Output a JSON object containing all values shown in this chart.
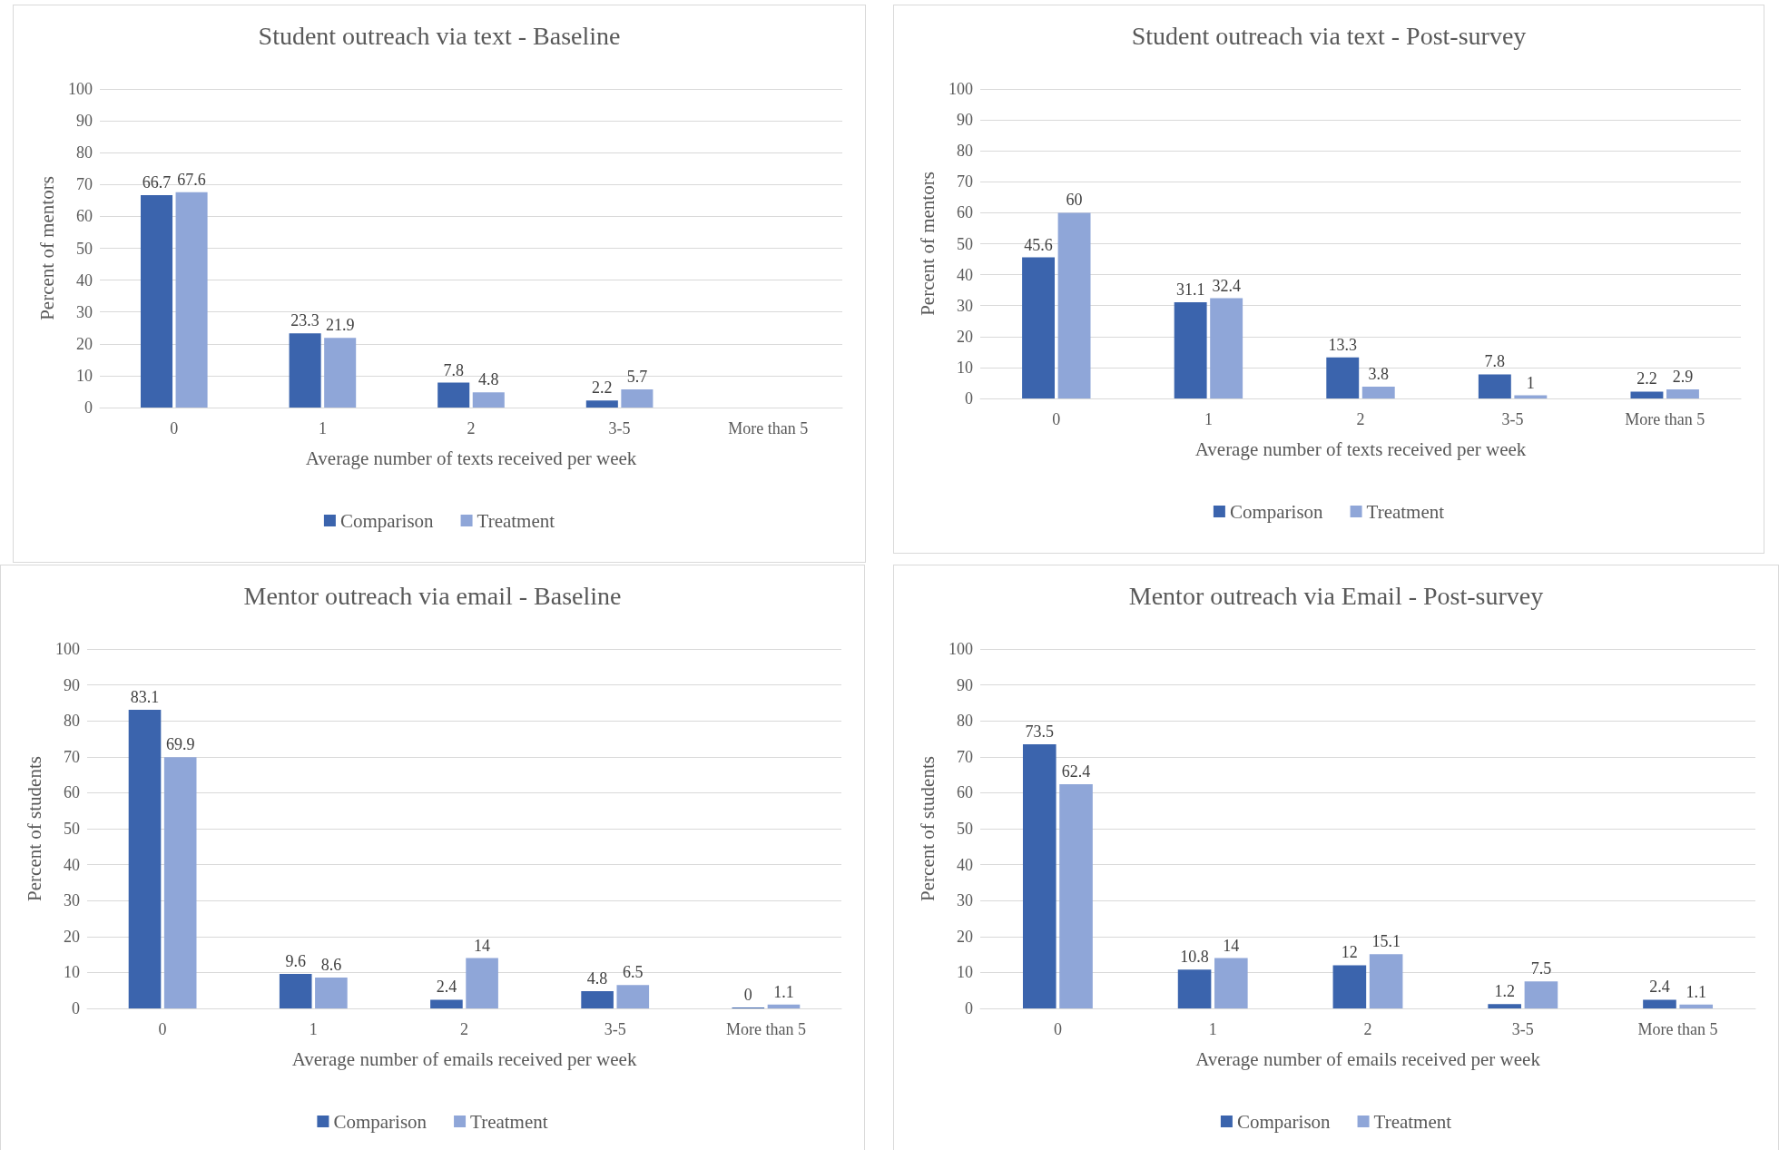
{
  "chart_data": [
    {
      "type": "bar",
      "title": "Student outreach via text - Baseline",
      "xlabel": "Average number of texts received per week",
      "ylabel": "Percent of mentors",
      "categories": [
        "0",
        "1",
        "2",
        "3-5",
        "More than 5"
      ],
      "series": [
        {
          "name": "Comparison",
          "color": "#3b64ad",
          "values": [
            66.7,
            23.3,
            7.8,
            2.2,
            null
          ]
        },
        {
          "name": "Treatment",
          "color": "#8fa6d8",
          "values": [
            67.6,
            21.9,
            4.8,
            5.7,
            null
          ]
        }
      ],
      "ylim": [
        0,
        100
      ],
      "yticks": [
        0,
        10,
        20,
        30,
        40,
        50,
        60,
        70,
        80,
        90,
        100
      ],
      "grid": "y",
      "legend": "bottom",
      "data_labels": true
    },
    {
      "type": "bar",
      "title": "Student outreach via text - Post-survey",
      "xlabel": "Average number of texts received per week",
      "ylabel": "Percent of mentors",
      "categories": [
        "0",
        "1",
        "2",
        "3-5",
        "More than 5"
      ],
      "series": [
        {
          "name": "Comparison",
          "color": "#3b64ad",
          "values": [
            45.6,
            31.1,
            13.3,
            7.8,
            2.2
          ]
        },
        {
          "name": "Treatment",
          "color": "#8fa6d8",
          "values": [
            60,
            32.4,
            3.8,
            1,
            2.9
          ]
        }
      ],
      "ylim": [
        0,
        100
      ],
      "yticks": [
        0,
        10,
        20,
        30,
        40,
        50,
        60,
        70,
        80,
        90,
        100
      ],
      "grid": "y",
      "legend": "bottom",
      "data_labels": true
    },
    {
      "type": "bar",
      "title": "Mentor outreach via email - Baseline",
      "xlabel": "Average number of emails received per week",
      "ylabel": "Percent of students",
      "categories": [
        "0",
        "1",
        "2",
        "3-5",
        "More than 5"
      ],
      "series": [
        {
          "name": "Comparison",
          "color": "#3b64ad",
          "values": [
            83.1,
            9.6,
            2.4,
            4.8,
            0
          ]
        },
        {
          "name": "Treatment",
          "color": "#8fa6d8",
          "values": [
            69.9,
            8.6,
            14,
            6.5,
            1.1
          ]
        }
      ],
      "ylim": [
        0,
        100
      ],
      "yticks": [
        0,
        10,
        20,
        30,
        40,
        50,
        60,
        70,
        80,
        90,
        100
      ],
      "grid": "y",
      "legend": "bottom",
      "data_labels": true
    },
    {
      "type": "bar",
      "title": "Mentor outreach via Email - Post-survey",
      "xlabel": "Average number of emails received per week",
      "ylabel": "Percent of students",
      "categories": [
        "0",
        "1",
        "2",
        "3-5",
        "More than 5"
      ],
      "series": [
        {
          "name": "Comparison",
          "color": "#3b64ad",
          "values": [
            73.5,
            10.8,
            12,
            1.2,
            2.4
          ]
        },
        {
          "name": "Treatment",
          "color": "#8fa6d8",
          "values": [
            62.4,
            14,
            15.1,
            7.5,
            1.1
          ]
        }
      ],
      "ylim": [
        0,
        100
      ],
      "yticks": [
        0,
        10,
        20,
        30,
        40,
        50,
        60,
        70,
        80,
        90,
        100
      ],
      "grid": "y",
      "legend": "bottom",
      "data_labels": true
    }
  ]
}
